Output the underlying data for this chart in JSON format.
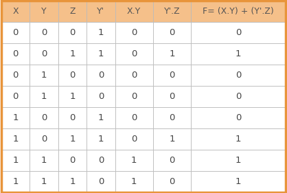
{
  "headers": [
    "X",
    "Y",
    "Z",
    "Y'",
    "X.Y",
    "Y'.Z",
    "F= (X.Y) + (Y'.Z)"
  ],
  "rows": [
    [
      "0",
      "0",
      "0",
      "1",
      "0",
      "0",
      "0"
    ],
    [
      "0",
      "0",
      "1",
      "1",
      "0",
      "1",
      "1"
    ],
    [
      "0",
      "1",
      "0",
      "0",
      "0",
      "0",
      "0"
    ],
    [
      "0",
      "1",
      "1",
      "0",
      "0",
      "0",
      "0"
    ],
    [
      "1",
      "0",
      "0",
      "1",
      "0",
      "0",
      "0"
    ],
    [
      "1",
      "0",
      "1",
      "1",
      "0",
      "1",
      "1"
    ],
    [
      "1",
      "1",
      "0",
      "0",
      "1",
      "0",
      "1"
    ],
    [
      "1",
      "1",
      "1",
      "0",
      "1",
      "0",
      "1"
    ]
  ],
  "header_bg": "#f5c08a",
  "header_text_color": "#555555",
  "cell_bg": "#ffffff",
  "cell_text_color": "#444444",
  "inner_border_color": "#bbbbbb",
  "outer_border_color": "#e8943a",
  "col_widths": [
    0.75,
    0.75,
    0.75,
    0.75,
    1.0,
    1.0,
    2.5
  ],
  "fig_width": 4.18,
  "fig_height": 2.81,
  "dpi": 100,
  "header_fontsize": 9.0,
  "cell_fontsize": 9.5,
  "outer_border_lw": 2.5,
  "inner_border_lw": 0.6
}
